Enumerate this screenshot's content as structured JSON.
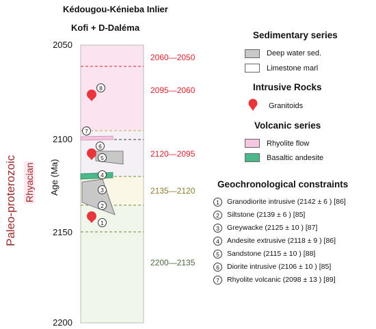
{
  "titles": {
    "line1": "Kédougou-Kénieba Inlier",
    "line2": "Kofi + D-Daléma"
  },
  "axis": {
    "ylabel": "Age (Ma)",
    "ticks": [
      "2050",
      "2100",
      "2150",
      "2200"
    ],
    "era_label": "Paleo-proterozoic",
    "period_label": "Rhyacian"
  },
  "ranges": [
    {
      "label": "2060—2050",
      "color": "#d9232e"
    },
    {
      "label": "2095—2060",
      "color": "#d9232e"
    },
    {
      "label": "2120—2095",
      "color": "#d9232e"
    },
    {
      "label": "2135—2120",
      "color": "#8a7a2a"
    },
    {
      "label": "2200—2135",
      "color": "#4a6a3a"
    }
  ],
  "legend": {
    "sedimentary_header": "Sedimentary series",
    "deep_water": "Deep water sed.",
    "limestone": "Limestone marl",
    "intrusive_header": "Intrusive Rocks",
    "granitoids": "Granitoids",
    "volcanic_header": "Volcanic series",
    "rhyolite": "Rhyolite flow",
    "basaltic": "Basaltic andesite"
  },
  "geochron": {
    "header": "Geochronological constraints",
    "items": [
      {
        "num": "1",
        "text": "Granodiorite intrusive (2142 ± 6 ) [86]"
      },
      {
        "num": "2",
        "text": "Siltstone (2139 ± 6 ) [85]"
      },
      {
        "num": "3",
        "text": "Greywacke (2125 ± 10 ) [87]"
      },
      {
        "num": "4",
        "text": "Andesite extrusive (2118 ± 9 ) [86]"
      },
      {
        "num": "5",
        "text": "Sandstone (2115 ± 10 ) [88]"
      },
      {
        "num": "6",
        "text": "Diorite intrusive (2106 ± 10 ) [85]"
      },
      {
        "num": "7",
        "text": "Rhyolite volcanic (2098 ± 13 ) [89]"
      }
    ]
  },
  "markers": [
    "8",
    "7",
    "6",
    "5",
    "4",
    "3",
    "2",
    "1"
  ],
  "colors": {
    "rhyolite": "#f5c6e0",
    "basaltic": "#4cb88a",
    "deep_water": "#c8c8c8",
    "granitoid": "#e8363c",
    "zone_pink": "#fbe3f0",
    "zone_cream": "#fbf7e6",
    "zone_green": "#f1f6ea"
  }
}
